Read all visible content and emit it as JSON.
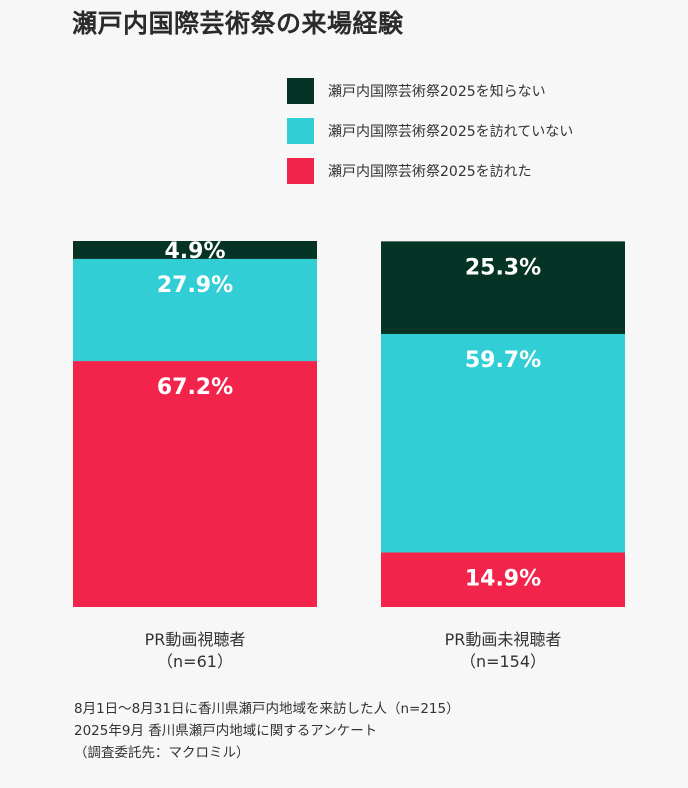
{
  "title": "瀬戸内国際芸術祭の来場経験",
  "colors": {
    "not_known": "#053326",
    "not_visited": "#32ced6",
    "visited": "#f2244b",
    "label_on_bar": "#ffffff",
    "axis_text": "#333333"
  },
  "legend": [
    {
      "label": "瀬戸内国際芸術祭2025を知らない",
      "color": "#053326"
    },
    {
      "label": "瀬戸内国際芸術祭2025を訪れていない",
      "color": "#32ced6"
    },
    {
      "label": "瀬戸内国際芸術祭2025を訪れた",
      "color": "#f2244b"
    }
  ],
  "chart_data": {
    "type": "bar",
    "stacked": true,
    "percent": true,
    "title": "瀬戸内国際芸術祭の来場経験",
    "categories": [
      {
        "name": "PR動画視聴者",
        "sub": "（n=61）"
      },
      {
        "name": "PR動画未視聴者",
        "sub": "（n=154）"
      }
    ],
    "series": [
      {
        "name": "瀬戸内国際芸術祭2025を訪れた",
        "color": "#f2244b",
        "values": [
          67.2,
          14.9
        ],
        "labels": [
          "67.2%",
          "14.9%"
        ]
      },
      {
        "name": "瀬戸内国際芸術祭2025を訪れていない",
        "color": "#32ced6",
        "values": [
          27.9,
          59.7
        ],
        "labels": [
          "27.9%",
          "59.7%"
        ]
      },
      {
        "name": "瀬戸内国際芸術祭2025を知らない",
        "color": "#053326",
        "values": [
          4.9,
          25.3
        ],
        "labels": [
          "4.9%",
          "25.3%"
        ]
      }
    ],
    "ylim": [
      0,
      100
    ],
    "grid": false,
    "legend_position": "top-right"
  },
  "footnote": [
    "8月1日〜8月31日に香川県瀬戸内地域を来訪した人（n=215）",
    "2025年9月 香川県瀬戸内地域に関するアンケート",
    "（調査委託先：マクロミル）"
  ]
}
